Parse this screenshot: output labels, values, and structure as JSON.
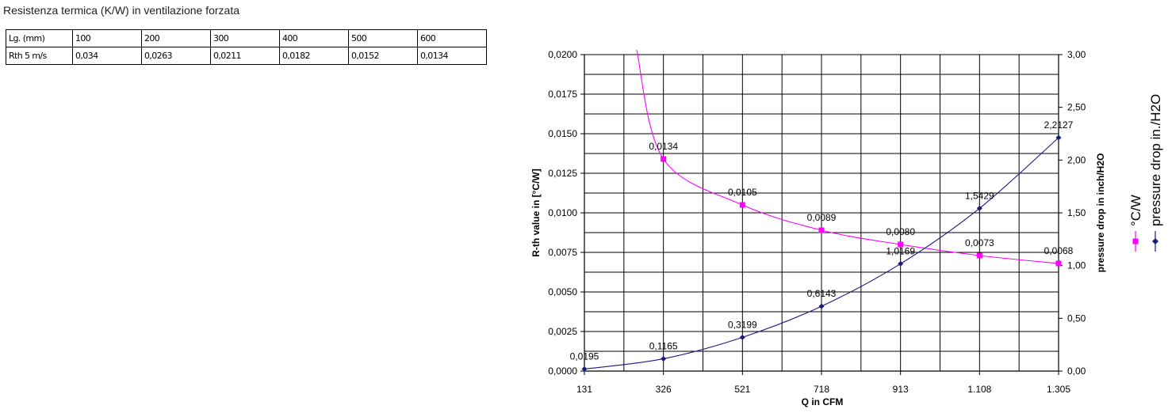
{
  "page": {
    "title": "Resistenza termica (K/W) in ventilazione forzata"
  },
  "table": {
    "header": [
      "Lg. (mm)",
      "100",
      "200",
      "300",
      "400",
      "500",
      "600"
    ],
    "rows": [
      [
        "Rth 5 m/s",
        "0,034",
        "0,0263",
        "0,0211",
        "0,0182",
        "0,0152",
        "0,0134"
      ]
    ]
  },
  "chart_data": {
    "type": "line",
    "xlabel": "Q in CFM",
    "ylabel": "R-th value in [°C/W]",
    "y2label": "pressure drop in inch/H2O",
    "x_ticks": [
      "131",
      "326",
      "521",
      "718",
      "913",
      "1.108",
      "1.305"
    ],
    "x": [
      131,
      326,
      521,
      718,
      913,
      1108,
      1305
    ],
    "ylim": [
      0,
      0.02
    ],
    "y2lim": [
      0,
      3
    ],
    "y_ticks": [
      "0,0000",
      "0,0025",
      "0,0050",
      "0,0075",
      "0,0100",
      "0,0125",
      "0,0150",
      "0,0175",
      "0,0200"
    ],
    "y2_ticks": [
      "0,00",
      "0,50",
      "1,00",
      "1,50",
      "2,00",
      "2,50",
      "3,00"
    ],
    "grid": true,
    "legend_position": "right, vertical",
    "series": [
      {
        "name": "°C/W",
        "axis": "left",
        "color": "#ff00ff",
        "marker": "square",
        "x": [
          326,
          521,
          718,
          913,
          1108,
          1305
        ],
        "values": [
          0.0134,
          0.0105,
          0.0089,
          0.008,
          0.0073,
          0.0068
        ],
        "labels": [
          "0,0134",
          "0,0105",
          "0,0089",
          "0,0080",
          "0,0073",
          "0,0068"
        ],
        "curve_start": {
          "x": 260,
          "value": 0.0203
        }
      },
      {
        "name": "pressure drop in./H2O",
        "axis": "right",
        "color": "#1a1a80",
        "marker": "diamond",
        "x": [
          131,
          326,
          521,
          718,
          913,
          1108,
          1305
        ],
        "values": [
          0.0195,
          0.1165,
          0.3199,
          0.6143,
          1.0169,
          1.5429,
          2.2127
        ],
        "labels": [
          "0,0195",
          "0,1165",
          "0,3199",
          "0,6143",
          "1,0169",
          "1,5429",
          "2,2127"
        ]
      }
    ]
  }
}
